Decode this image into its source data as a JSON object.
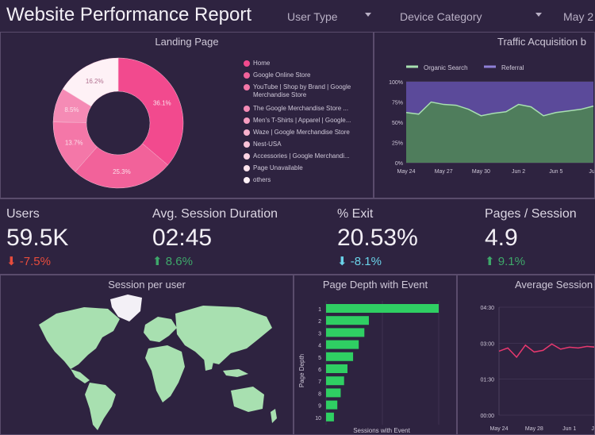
{
  "header": {
    "title": "Website Performance Report",
    "filters": [
      {
        "label": "User Type"
      },
      {
        "label": "Device Category"
      },
      {
        "label": "May 2"
      }
    ]
  },
  "colors": {
    "background": "#2e2340",
    "pink": "#f24a8e",
    "green": "#a8e0b0",
    "purple": "#5b4a9a",
    "negative": "#e74c3c",
    "positive": "#3ea86a",
    "exit_arrow": "#6ad2e8"
  },
  "landing_page": {
    "title": "Landing Page",
    "legend": [
      {
        "label": "Home",
        "color": "#f24a8e"
      },
      {
        "label": "Google Online Store",
        "color": "#f2629a"
      },
      {
        "label": "YouTube | Shop by Brand | Google Merchandise Store",
        "color": "#f477a8"
      },
      {
        "label": "The Google Merchandise Store ...",
        "color": "#f58bb5"
      },
      {
        "label": "Men's T-Shirts | Apparel | Google...",
        "color": "#f79ec1"
      },
      {
        "label": "Waze | Google Merchandise Store",
        "color": "#f9b1cd"
      },
      {
        "label": "Nest-USA",
        "color": "#fac2d8"
      },
      {
        "label": "Accessories | Google Merchandi...",
        "color": "#fcd3e3"
      },
      {
        "label": "Page Unavailable",
        "color": "#fde3ed"
      },
      {
        "label": "others",
        "color": "#fef1f6"
      }
    ],
    "slice_labels": [
      "36.1%",
      "25.3%",
      "13.7%",
      "8.5%",
      "16.2%"
    ]
  },
  "traffic": {
    "title": "Traffic Acquisition b",
    "legend": [
      {
        "label": "Organic Search",
        "color": "#a8e0b0"
      },
      {
        "label": "Referral",
        "color": "#5b4a9a"
      }
    ],
    "y_ticks": [
      "100%",
      "75%",
      "50%",
      "25%",
      "0%"
    ],
    "x_ticks": [
      "May 24",
      "May 27",
      "May 30",
      "Jun 2",
      "Jun 5",
      "Jun"
    ]
  },
  "kpis": [
    {
      "label": "Users",
      "value": "59.5K",
      "change": "-7.5%",
      "arrow": "⬇",
      "color": "#e74c3c"
    },
    {
      "label": "Avg. Session Duration",
      "value": "02:45",
      "change": "8.6%",
      "arrow": "⬆",
      "color": "#3ea86a"
    },
    {
      "label": "% Exit",
      "value": "20.53%",
      "change": "-8.1%",
      "arrow": "⬇",
      "color": "#6ad2e8"
    },
    {
      "label": "Pages / Session",
      "value": "4.9",
      "change": "9.1%",
      "arrow": "⬆",
      "color": "#3ea86a"
    }
  ],
  "session_map": {
    "title": "Session per user"
  },
  "page_depth": {
    "title": "Page Depth with Event",
    "y_label": "Page Depth",
    "x_label": "Sessions with Event"
  },
  "avg_session": {
    "title": "Average Session",
    "y_ticks": [
      "04:30",
      "03:00",
      "01:30",
      "00:00"
    ],
    "x_ticks": [
      "May 24",
      "May 28",
      "Jun 1",
      "Jun"
    ]
  },
  "chart_data": [
    {
      "type": "pie",
      "title": "Landing Page",
      "categories": [
        "Home",
        "Google Online Store",
        "YouTube | Shop by Brand | Google Merchandise Store",
        "The Google Merchandise Store ...",
        "Men's T-Shirts | Apparel | Google...",
        "Waze | Google Merchandise Store",
        "Nest-USA",
        "Accessories | Google Merchandi...",
        "Page Unavailable",
        "others"
      ],
      "values": [
        36.1,
        25.3,
        13.7,
        8.5,
        0,
        0,
        0,
        0,
        0,
        16.2
      ]
    },
    {
      "type": "area",
      "title": "Traffic Acquisition b",
      "x": [
        "May 24",
        "May 25",
        "May 26",
        "May 27",
        "May 28",
        "May 29",
        "May 30",
        "May 31",
        "Jun 1",
        "Jun 2",
        "Jun 3",
        "Jun 4",
        "Jun 5",
        "Jun 6",
        "Jun 7",
        "Jun 8"
      ],
      "series": [
        {
          "name": "Organic Search",
          "values": [
            62,
            60,
            75,
            72,
            71,
            66,
            58,
            61,
            63,
            72,
            69,
            58,
            62,
            64,
            66,
            70
          ]
        },
        {
          "name": "Referral",
          "values": [
            38,
            40,
            25,
            28,
            29,
            34,
            42,
            39,
            37,
            28,
            31,
            42,
            38,
            36,
            34,
            30
          ]
        }
      ],
      "ylim": [
        0,
        100
      ],
      "yunit": "%"
    },
    {
      "type": "bar",
      "title": "Page Depth with Event",
      "orientation": "horizontal",
      "categories": [
        "1",
        "2",
        "3",
        "4",
        "5",
        "6",
        "7",
        "8",
        "9",
        "10"
      ],
      "values": [
        100,
        38,
        34,
        29,
        24,
        19,
        16,
        13,
        10,
        7
      ],
      "xlabel": "Sessions with Event",
      "ylabel": "Page Depth"
    },
    {
      "type": "line",
      "title": "Average Session",
      "x": [
        "May 24",
        "May 25",
        "May 26",
        "May 27",
        "May 28",
        "May 29",
        "May 30",
        "May 31",
        "Jun 1",
        "Jun 2",
        "Jun 3",
        "Jun 4"
      ],
      "series": [
        {
          "name": "Avg. Session Duration",
          "values": [
            160,
            168,
            145,
            175,
            158,
            162,
            178,
            165,
            170,
            168,
            172,
            170
          ]
        }
      ],
      "ylim": [
        0,
        270
      ],
      "yunit": "seconds"
    }
  ]
}
